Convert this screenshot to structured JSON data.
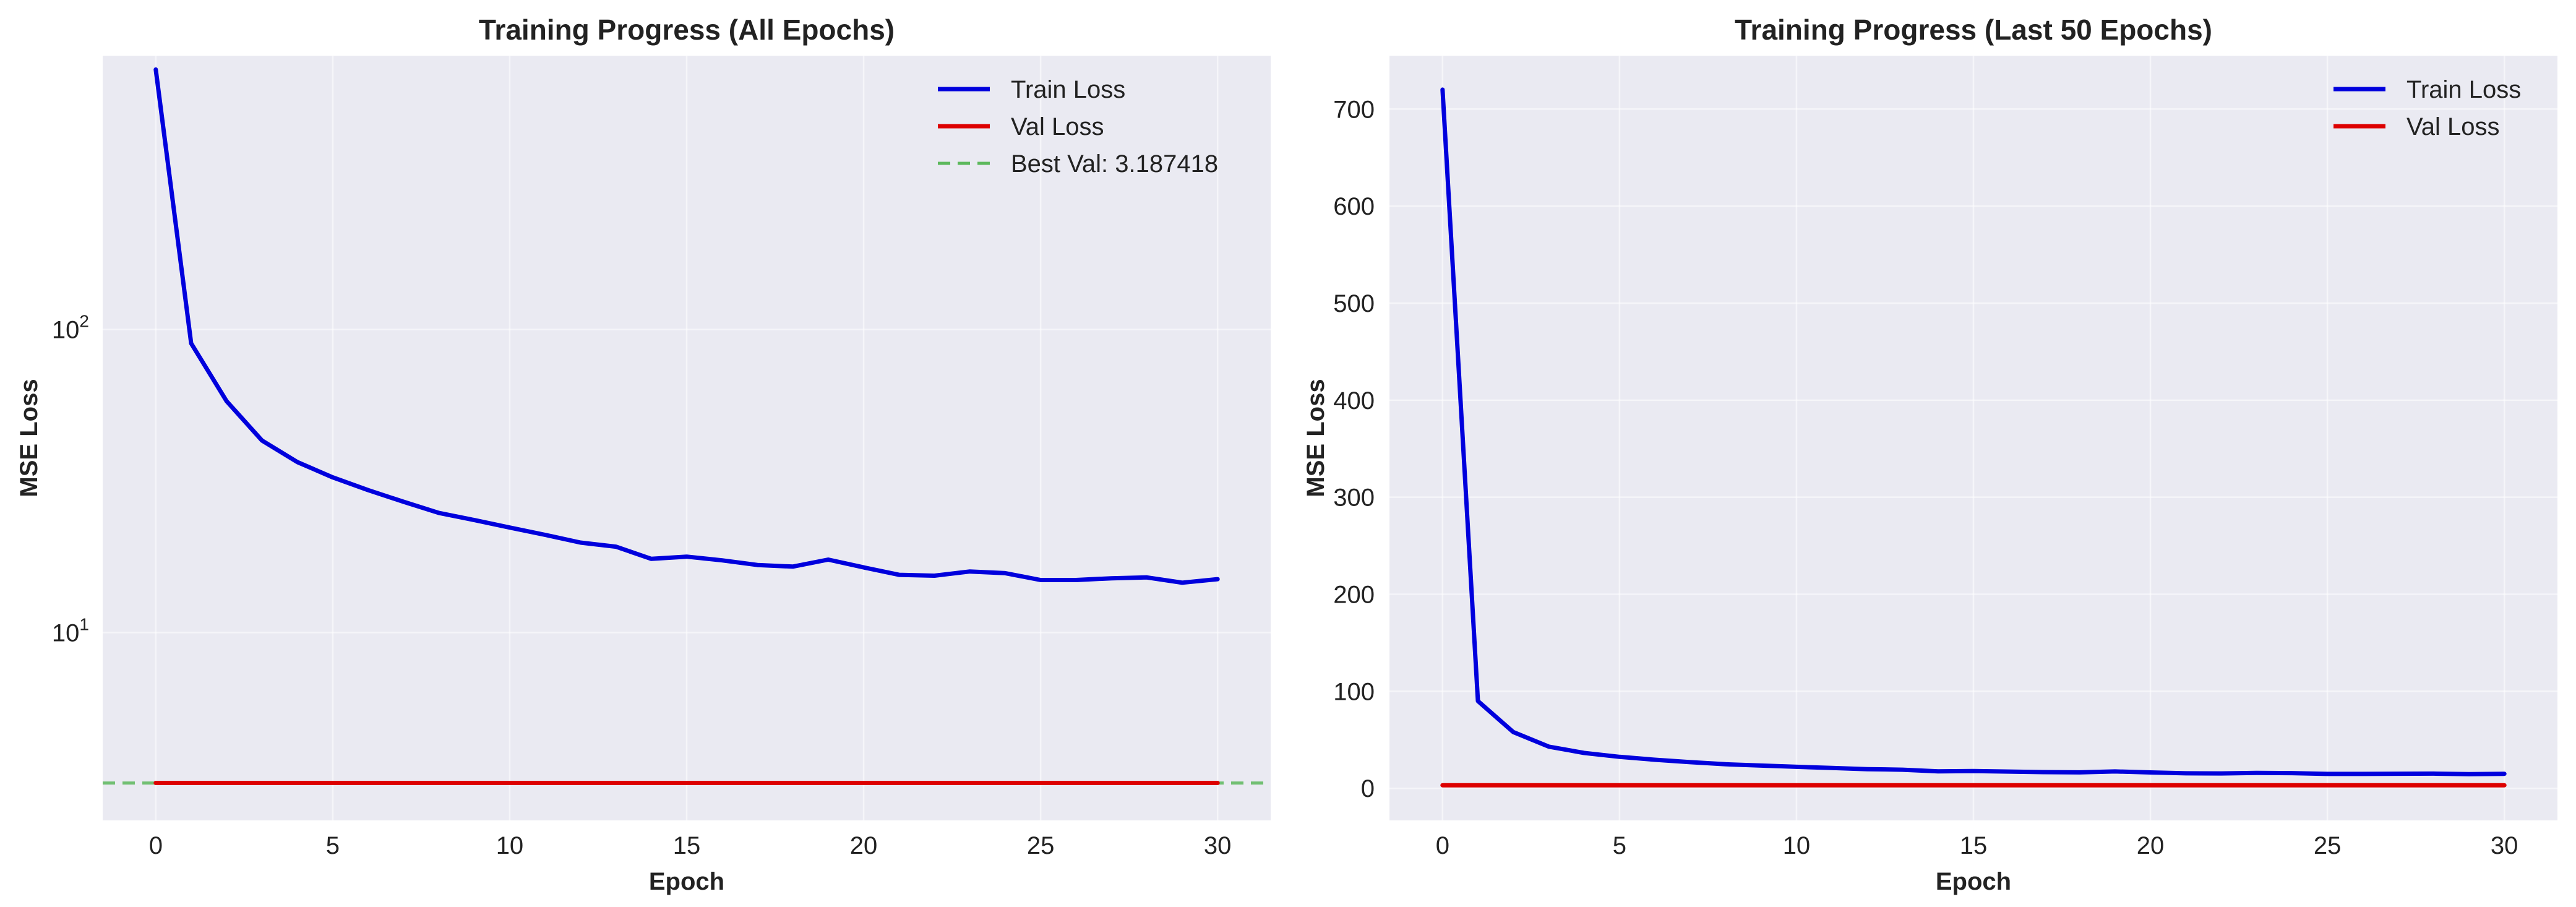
{
  "chart_data": [
    {
      "type": "line",
      "title": "Training Progress (All Epochs)",
      "xlabel": "Epoch",
      "ylabel": "MSE Loss",
      "yscale": "log",
      "xlim": [
        -1.5,
        31.5
      ],
      "ylim": [
        2.4,
        800
      ],
      "x_ticks": [
        0,
        5,
        10,
        15,
        20,
        25,
        30
      ],
      "y_ticks": [
        {
          "value": 10,
          "base": "10",
          "exp": "1"
        },
        {
          "value": 100,
          "base": "10",
          "exp": "2"
        }
      ],
      "grid": true,
      "legend_position": "top-right",
      "series": [
        {
          "name": "Train Loss",
          "color": "#0000dd",
          "style": "solid",
          "x": [
            0,
            1,
            2,
            3,
            4,
            5,
            6,
            7,
            8,
            9,
            10,
            11,
            12,
            13,
            14,
            15,
            16,
            17,
            18,
            19,
            20,
            21,
            22,
            23,
            24,
            25,
            26,
            27,
            28,
            29,
            30
          ],
          "values": [
            720,
            90,
            58,
            43,
            36.5,
            32.5,
            29.5,
            27,
            24.8,
            23.5,
            22.2,
            21,
            19.8,
            19.2,
            17.5,
            17.8,
            17.3,
            16.7,
            16.5,
            17.4,
            16.4,
            15.5,
            15.4,
            15.9,
            15.7,
            14.9,
            14.9,
            15.1,
            15.2,
            14.6,
            15
          ]
        },
        {
          "name": "Val Loss",
          "color": "#dd0000",
          "style": "solid",
          "x": [
            0,
            1,
            2,
            3,
            4,
            5,
            6,
            7,
            8,
            9,
            10,
            11,
            12,
            13,
            14,
            15,
            16,
            17,
            18,
            19,
            20,
            21,
            22,
            23,
            24,
            25,
            26,
            27,
            28,
            29,
            30
          ],
          "values": [
            3.19,
            3.19,
            3.19,
            3.19,
            3.19,
            3.19,
            3.19,
            3.19,
            3.19,
            3.19,
            3.19,
            3.19,
            3.19,
            3.19,
            3.19,
            3.19,
            3.19,
            3.19,
            3.19,
            3.19,
            3.19,
            3.19,
            3.19,
            3.19,
            3.19,
            3.19,
            3.19,
            3.19,
            3.19,
            3.19,
            3.19
          ]
        }
      ],
      "hlines": [
        {
          "name": "Best Val: 3.187418",
          "value": 3.187418,
          "color": "#5cb85c",
          "style": "dashed"
        }
      ]
    },
    {
      "type": "line",
      "title": "Training Progress (Last 50 Epochs)",
      "xlabel": "Epoch",
      "ylabel": "MSE Loss",
      "yscale": "linear",
      "xlim": [
        -1.5,
        31.5
      ],
      "ylim": [
        -33,
        755
      ],
      "x_ticks": [
        0,
        5,
        10,
        15,
        20,
        25,
        30
      ],
      "y_ticks": [
        {
          "value": 0,
          "label": "0"
        },
        {
          "value": 100,
          "label": "100"
        },
        {
          "value": 200,
          "label": "200"
        },
        {
          "value": 300,
          "label": "300"
        },
        {
          "value": 400,
          "label": "400"
        },
        {
          "value": 500,
          "label": "500"
        },
        {
          "value": 600,
          "label": "600"
        },
        {
          "value": 700,
          "label": "700"
        }
      ],
      "grid": true,
      "legend_position": "top-right",
      "series": [
        {
          "name": "Train Loss",
          "color": "#0000dd",
          "style": "solid",
          "x": [
            0,
            1,
            2,
            3,
            4,
            5,
            6,
            7,
            8,
            9,
            10,
            11,
            12,
            13,
            14,
            15,
            16,
            17,
            18,
            19,
            20,
            21,
            22,
            23,
            24,
            25,
            26,
            27,
            28,
            29,
            30
          ],
          "values": [
            720,
            90,
            58,
            43,
            36.5,
            32.5,
            29.5,
            27,
            24.8,
            23.5,
            22.2,
            21,
            19.8,
            19.2,
            17.5,
            17.8,
            17.3,
            16.7,
            16.5,
            17.4,
            16.4,
            15.5,
            15.4,
            15.9,
            15.7,
            14.9,
            14.9,
            15.1,
            15.2,
            14.6,
            15
          ]
        },
        {
          "name": "Val Loss",
          "color": "#dd0000",
          "style": "solid",
          "x": [
            0,
            1,
            2,
            3,
            4,
            5,
            6,
            7,
            8,
            9,
            10,
            11,
            12,
            13,
            14,
            15,
            16,
            17,
            18,
            19,
            20,
            21,
            22,
            23,
            24,
            25,
            26,
            27,
            28,
            29,
            30
          ],
          "values": [
            3.19,
            3.19,
            3.19,
            3.19,
            3.19,
            3.19,
            3.19,
            3.19,
            3.19,
            3.19,
            3.19,
            3.19,
            3.19,
            3.19,
            3.19,
            3.19,
            3.19,
            3.19,
            3.19,
            3.19,
            3.19,
            3.19,
            3.19,
            3.19,
            3.19,
            3.19,
            3.19,
            3.19,
            3.19,
            3.19,
            3.19
          ]
        }
      ],
      "hlines": []
    }
  ]
}
